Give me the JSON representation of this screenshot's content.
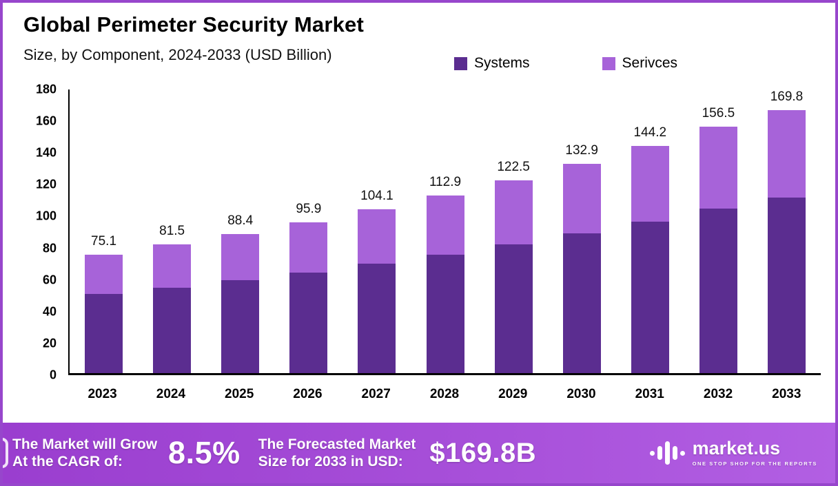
{
  "header": {
    "title": "Global Perimeter Security Market",
    "subtitle": "Size, by Component, 2024-2033 (USD Billion)"
  },
  "legend": {
    "systems": {
      "label": "Systems",
      "color": "#5b2d90"
    },
    "services": {
      "label": "Serivces",
      "color": "#a763d9"
    }
  },
  "chart_data": {
    "type": "bar",
    "stacked": true,
    "title": "Global Perimeter Security Market Size, by Component, 2024-2033 (USD Billion)",
    "categories": [
      "2023",
      "2024",
      "2025",
      "2026",
      "2027",
      "2028",
      "2029",
      "2030",
      "2031",
      "2032",
      "2033"
    ],
    "series": [
      {
        "name": "Systems",
        "color": "#5b2d90",
        "values": [
          50.1,
          54.4,
          59.0,
          64.0,
          69.5,
          75.3,
          81.7,
          88.6,
          96.2,
          104.4,
          113.2
        ]
      },
      {
        "name": "Serivces",
        "color": "#a763d9",
        "values": [
          25.0,
          27.1,
          29.4,
          31.9,
          34.6,
          37.6,
          40.8,
          44.3,
          48.0,
          52.1,
          56.6
        ]
      }
    ],
    "totals": [
      75.1,
      81.5,
      88.4,
      95.9,
      104.1,
      112.9,
      122.5,
      132.9,
      144.2,
      156.5,
      169.8
    ],
    "xlabel": "",
    "ylabel": "",
    "ylim": [
      0,
      180
    ],
    "ytick_step": 20,
    "grid": false,
    "legend_position": "top"
  },
  "footer": {
    "cagr_label_line1": "The Market will Grow",
    "cagr_label_line2": "At the CAGR of:",
    "cagr_value": "8.5%",
    "forecast_label_line1": "The Forecasted Market",
    "forecast_label_line2": "Size for 2033 in USD:",
    "forecast_value": "$169.8B",
    "brand_name": "market.us",
    "brand_tagline": "ONE STOP SHOP FOR THE REPORTS"
  }
}
